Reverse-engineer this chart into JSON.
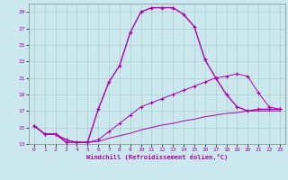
{
  "xlabel": "Windchill (Refroidissement éolien,°C)",
  "bg_color": "#cce8ef",
  "grid_color": "#aacccc",
  "line_color": "#aa00aa",
  "xlim": [
    -0.5,
    23.5
  ],
  "ylim": [
    13,
    30
  ],
  "yticks": [
    13,
    15,
    17,
    19,
    21,
    23,
    25,
    27,
    29
  ],
  "xticks": [
    0,
    1,
    2,
    3,
    4,
    5,
    6,
    7,
    8,
    9,
    10,
    11,
    12,
    13,
    14,
    15,
    16,
    17,
    18,
    19,
    20,
    21,
    22,
    23
  ],
  "line1_x": [
    0,
    1,
    2,
    3,
    4,
    5,
    6,
    7,
    8,
    9,
    10,
    11,
    12,
    13,
    14,
    15,
    16,
    17,
    18,
    19,
    20,
    21,
    22,
    23
  ],
  "line1_y": [
    15.2,
    14.2,
    14.2,
    13.2,
    13.2,
    13.2,
    17.2,
    20.5,
    22.5,
    26.5,
    29.0,
    29.5,
    29.5,
    29.5,
    28.7,
    27.2,
    23.2,
    21.0,
    19.0,
    17.5,
    17.0,
    17.2,
    17.2,
    17.2
  ],
  "line2_x": [
    0,
    1,
    2,
    3,
    4,
    5,
    6,
    7,
    8,
    9,
    10,
    11,
    12,
    13,
    14,
    15,
    16,
    17,
    18,
    19,
    20,
    21,
    22,
    23
  ],
  "line2_y": [
    15.2,
    14.2,
    14.2,
    13.5,
    13.2,
    13.2,
    13.5,
    14.5,
    15.5,
    16.5,
    17.5,
    18.0,
    18.5,
    19.0,
    19.5,
    20.0,
    20.5,
    21.0,
    21.2,
    21.5,
    21.2,
    19.2,
    17.5,
    17.2
  ],
  "line3_x": [
    0,
    1,
    2,
    3,
    4,
    5,
    6,
    7,
    8,
    9,
    10,
    11,
    12,
    13,
    14,
    15,
    16,
    17,
    18,
    19,
    20,
    21,
    22,
    23
  ],
  "line3_y": [
    15.2,
    14.2,
    14.2,
    13.5,
    13.2,
    13.2,
    13.3,
    13.7,
    14.0,
    14.3,
    14.7,
    15.0,
    15.3,
    15.5,
    15.8,
    16.0,
    16.3,
    16.5,
    16.7,
    16.8,
    17.0,
    17.0,
    17.0,
    17.0
  ]
}
